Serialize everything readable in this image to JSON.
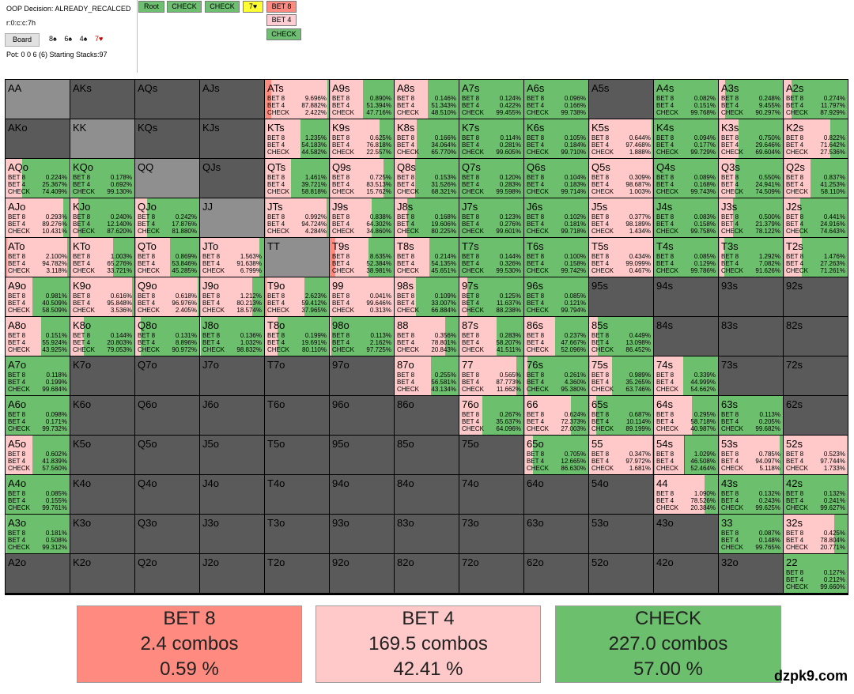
{
  "header": {
    "decision": "OOP Decision:  ALREADY_RECALCED",
    "line": "r:0:c:c:7h",
    "board_button": "Board",
    "board_cards": [
      {
        "text": "8♠",
        "color": "#000000"
      },
      {
        "text": "6♠",
        "color": "#000000"
      },
      {
        "text": "4♠",
        "color": "#000000"
      },
      {
        "text": "7♥",
        "color": "#cc0000"
      }
    ],
    "pot_stacks": "Pot: 0 0 6 (6) Starting Stacks:97"
  },
  "nav": [
    {
      "label": "Root",
      "color": "#6fbf73"
    },
    {
      "label": "CHECK",
      "color": "#6fbf73"
    },
    {
      "label": "CHECK",
      "color": "#6fbf73"
    },
    {
      "label": "7♥",
      "color": "#ffff33"
    },
    {
      "label": "BET 8",
      "color": "#ff8a80"
    },
    {
      "label": "BET 4",
      "color": "#ffcdd2"
    },
    {
      "label": "CHECK",
      "color": "#6fbf73"
    }
  ],
  "colors": {
    "bet8": "#ff8a80",
    "bet4": "#ffc9c9",
    "check": "#6cbf6c",
    "empty": "#5a5a5a",
    "pair_empty": "#8f8f8f"
  },
  "labels": {
    "bet8": "BET 8",
    "bet4": "BET 4",
    "check": "CHECK"
  },
  "hands": [
    [
      {
        "n": "AA"
      },
      {
        "n": "AKs"
      },
      {
        "n": "AQs"
      },
      {
        "n": "AJs"
      },
      {
        "n": "ATs",
        "v": [
          "9.696%",
          "87.882%",
          "2.422%"
        ]
      },
      {
        "n": "A9s",
        "v": [
          "0.890%",
          "51.394%",
          "47.716%"
        ]
      },
      {
        "n": "A8s",
        "v": [
          "0.146%",
          "51.343%",
          "48.510%"
        ]
      },
      {
        "n": "A7s",
        "v": [
          "0.124%",
          "0.422%",
          "99.455%"
        ]
      },
      {
        "n": "A6s",
        "v": [
          "0.096%",
          "0.166%",
          "99.738%"
        ]
      },
      {
        "n": "A5s"
      },
      {
        "n": "A4s",
        "v": [
          "0.082%",
          "0.151%",
          "99.768%"
        ]
      },
      {
        "n": "A3s",
        "v": [
          "0.248%",
          "9.455%",
          "90.297%"
        ]
      },
      {
        "n": "A2s",
        "v": [
          "0.274%",
          "11.797%",
          "87.929%"
        ]
      }
    ],
    [
      {
        "n": "AKo"
      },
      {
        "n": "KK"
      },
      {
        "n": "KQs"
      },
      {
        "n": "KJs"
      },
      {
        "n": "KTs",
        "v": [
          "1.235%",
          "54.183%",
          "44.582%"
        ]
      },
      {
        "n": "K9s",
        "v": [
          "0.625%",
          "76.818%",
          "22.557%"
        ]
      },
      {
        "n": "K8s",
        "v": [
          "0.166%",
          "34.064%",
          "65.770%"
        ]
      },
      {
        "n": "K7s",
        "v": [
          "0.114%",
          "0.281%",
          "99.605%"
        ]
      },
      {
        "n": "K6s",
        "v": [
          "0.105%",
          "0.184%",
          "99.710%"
        ]
      },
      {
        "n": "K5s",
        "v": [
          "0.644%",
          "97.468%",
          "1.888%"
        ]
      },
      {
        "n": "K4s",
        "v": [
          "0.094%",
          "0.177%",
          "99.729%"
        ]
      },
      {
        "n": "K3s",
        "v": [
          "0.750%",
          "29.646%",
          "69.604%"
        ]
      },
      {
        "n": "K2s",
        "v": [
          "0.822%",
          "71.642%",
          "27.536%"
        ]
      }
    ],
    [
      {
        "n": "AQo",
        "v": [
          "0.224%",
          "25.367%",
          "74.409%"
        ]
      },
      {
        "n": "KQo",
        "v": [
          "0.178%",
          "0.692%",
          "99.130%"
        ]
      },
      {
        "n": "QQ"
      },
      {
        "n": "QJs"
      },
      {
        "n": "QTs",
        "v": [
          "1.461%",
          "39.721%",
          "58.818%"
        ]
      },
      {
        "n": "Q9s",
        "v": [
          "0.725%",
          "83.513%",
          "15.762%"
        ]
      },
      {
        "n": "Q8s",
        "v": [
          "0.153%",
          "31.526%",
          "68.321%"
        ]
      },
      {
        "n": "Q7s",
        "v": [
          "0.120%",
          "0.283%",
          "99.598%"
        ]
      },
      {
        "n": "Q6s",
        "v": [
          "0.104%",
          "0.183%",
          "99.714%"
        ]
      },
      {
        "n": "Q5s",
        "v": [
          "0.309%",
          "98.687%",
          "1.003%"
        ]
      },
      {
        "n": "Q4s",
        "v": [
          "0.089%",
          "0.168%",
          "99.743%"
        ]
      },
      {
        "n": "Q3s",
        "v": [
          "0.550%",
          "24.941%",
          "74.509%"
        ]
      },
      {
        "n": "Q2s",
        "v": [
          "0.837%",
          "41.253%",
          "58.110%"
        ]
      }
    ],
    [
      {
        "n": "AJo",
        "v": [
          "0.293%",
          "89.276%",
          "10.431%"
        ]
      },
      {
        "n": "KJo",
        "v": [
          "0.240%",
          "12.140%",
          "87.620%"
        ]
      },
      {
        "n": "QJo",
        "v": [
          "0.242%",
          "17.876%",
          "81.880%"
        ]
      },
      {
        "n": "JJ"
      },
      {
        "n": "JTs",
        "v": [
          "0.992%",
          "94.724%",
          "4.284%"
        ]
      },
      {
        "n": "J9s",
        "v": [
          "0.838%",
          "64.302%",
          "34.860%"
        ]
      },
      {
        "n": "J8s",
        "v": [
          "0.168%",
          "19.606%",
          "80.225%"
        ]
      },
      {
        "n": "J7s",
        "v": [
          "0.123%",
          "0.276%",
          "99.601%"
        ]
      },
      {
        "n": "J6s",
        "v": [
          "0.102%",
          "0.181%",
          "99.718%"
        ]
      },
      {
        "n": "J5s",
        "v": [
          "0.377%",
          "98.189%",
          "1.434%"
        ]
      },
      {
        "n": "J4s",
        "v": [
          "0.083%",
          "0.158%",
          "99.758%"
        ]
      },
      {
        "n": "J3s",
        "v": [
          "0.500%",
          "21.379%",
          "78.122%"
        ]
      },
      {
        "n": "J2s",
        "v": [
          "0.441%",
          "24.916%",
          "74.643%"
        ]
      }
    ],
    [
      {
        "n": "ATo",
        "v": [
          "2.100%",
          "94.782%",
          "3.118%"
        ]
      },
      {
        "n": "KTo",
        "v": [
          "1.003%",
          "65.276%",
          "33.721%"
        ]
      },
      {
        "n": "QTo",
        "v": [
          "0.869%",
          "53.846%",
          "45.285%"
        ]
      },
      {
        "n": "JTo",
        "v": [
          "1.563%",
          "91.638%",
          "6.799%"
        ]
      },
      {
        "n": "TT"
      },
      {
        "n": "T9s",
        "v": [
          "8.635%",
          "52.384%",
          "38.981%"
        ]
      },
      {
        "n": "T8s",
        "v": [
          "0.214%",
          "54.135%",
          "45.651%"
        ]
      },
      {
        "n": "T7s",
        "v": [
          "0.144%",
          "0.326%",
          "99.530%"
        ]
      },
      {
        "n": "T6s",
        "v": [
          "0.100%",
          "0.158%",
          "99.742%"
        ]
      },
      {
        "n": "T5s",
        "v": [
          "0.434%",
          "99.099%",
          "0.467%"
        ]
      },
      {
        "n": "T4s",
        "v": [
          "0.085%",
          "0.129%",
          "99.786%"
        ]
      },
      {
        "n": "T3s",
        "v": [
          "1.292%",
          "7.082%",
          "91.626%"
        ]
      },
      {
        "n": "T2s",
        "v": [
          "1.476%",
          "27.263%",
          "71.261%"
        ]
      }
    ],
    [
      {
        "n": "A9o",
        "v": [
          "0.981%",
          "40.509%",
          "58.509%"
        ]
      },
      {
        "n": "K9o",
        "v": [
          "0.616%",
          "95.848%",
          "3.536%"
        ]
      },
      {
        "n": "Q9o",
        "v": [
          "0.618%",
          "96.976%",
          "2.405%"
        ]
      },
      {
        "n": "J9o",
        "v": [
          "1.212%",
          "80.213%",
          "18.574%"
        ]
      },
      {
        "n": "T9o",
        "v": [
          "2.623%",
          "59.412%",
          "37.965%"
        ]
      },
      {
        "n": "99",
        "v": [
          "0.041%",
          "99.646%",
          "0.313%"
        ]
      },
      {
        "n": "98s",
        "v": [
          "0.109%",
          "33.007%",
          "66.884%"
        ]
      },
      {
        "n": "97s",
        "v": [
          "0.125%",
          "11.637%",
          "88.238%"
        ]
      },
      {
        "n": "96s",
        "v": [
          "0.085%",
          "0.121%",
          "99.794%"
        ]
      },
      {
        "n": "95s"
      },
      {
        "n": "94s"
      },
      {
        "n": "93s"
      },
      {
        "n": "92s"
      }
    ],
    [
      {
        "n": "A8o",
        "v": [
          "0.151%",
          "55.924%",
          "43.925%"
        ]
      },
      {
        "n": "K8o",
        "v": [
          "0.144%",
          "20.803%",
          "79.053%"
        ]
      },
      {
        "n": "Q8o",
        "v": [
          "0.131%",
          "8.896%",
          "90.972%"
        ]
      },
      {
        "n": "J8o",
        "v": [
          "0.136%",
          "1.032%",
          "98.832%"
        ]
      },
      {
        "n": "T8o",
        "v": [
          "0.199%",
          "19.691%",
          "80.110%"
        ]
      },
      {
        "n": "98o",
        "v": [
          "0.113%",
          "2.162%",
          "97.725%"
        ]
      },
      {
        "n": "88",
        "v": [
          "0.356%",
          "78.801%",
          "20.843%"
        ]
      },
      {
        "n": "87s",
        "v": [
          "0.283%",
          "58.207%",
          "41.511%"
        ]
      },
      {
        "n": "86s",
        "v": [
          "0.237%",
          "47.667%",
          "52.096%"
        ]
      },
      {
        "n": "85s",
        "v": [
          "0.449%",
          "13.098%",
          "86.452%"
        ]
      },
      {
        "n": "84s"
      },
      {
        "n": "83s"
      },
      {
        "n": "82s"
      }
    ],
    [
      {
        "n": "A7o",
        "v": [
          "0.118%",
          "0.199%",
          "99.684%"
        ]
      },
      {
        "n": "K7o"
      },
      {
        "n": "Q7o"
      },
      {
        "n": "J7o"
      },
      {
        "n": "T7o"
      },
      {
        "n": "97o"
      },
      {
        "n": "87o",
        "v": [
          "0.255%",
          "56.581%",
          "43.134%"
        ]
      },
      {
        "n": "77",
        "v": [
          "0.565%",
          "87.773%",
          "11.662%"
        ]
      },
      {
        "n": "76s",
        "v": [
          "0.261%",
          "4.360%",
          "95.380%"
        ]
      },
      {
        "n": "75s",
        "v": [
          "0.989%",
          "35.265%",
          "63.746%"
        ]
      },
      {
        "n": "74s",
        "v": [
          "0.339%",
          "44.999%",
          "54.662%"
        ]
      },
      {
        "n": "73s"
      },
      {
        "n": "72s"
      }
    ],
    [
      {
        "n": "A6o",
        "v": [
          "0.098%",
          "0.171%",
          "99.732%"
        ]
      },
      {
        "n": "K6o"
      },
      {
        "n": "Q6o"
      },
      {
        "n": "J6o"
      },
      {
        "n": "T6o"
      },
      {
        "n": "96o"
      },
      {
        "n": "86o"
      },
      {
        "n": "76o",
        "v": [
          "0.267%",
          "35.637%",
          "64.096%"
        ]
      },
      {
        "n": "66",
        "v": [
          "0.624%",
          "72.373%",
          "27.003%"
        ]
      },
      {
        "n": "65s",
        "v": [
          "0.687%",
          "10.114%",
          "89.199%"
        ]
      },
      {
        "n": "64s",
        "v": [
          "0.295%",
          "58.718%",
          "40.987%"
        ]
      },
      {
        "n": "63s",
        "v": [
          "0.113%",
          "0.205%",
          "99.682%"
        ]
      },
      {
        "n": "62s"
      }
    ],
    [
      {
        "n": "A5o",
        "v": [
          "0.602%",
          "41.839%",
          "57.560%"
        ]
      },
      {
        "n": "K5o"
      },
      {
        "n": "Q5o"
      },
      {
        "n": "J5o"
      },
      {
        "n": "T5o"
      },
      {
        "n": "95o"
      },
      {
        "n": "85o"
      },
      {
        "n": "75o"
      },
      {
        "n": "65o",
        "v": [
          "0.705%",
          "12.665%",
          "86.630%"
        ]
      },
      {
        "n": "55",
        "v": [
          "0.347%",
          "97.972%",
          "1.681%"
        ]
      },
      {
        "n": "54s",
        "v": [
          "1.029%",
          "46.508%",
          "52.464%"
        ]
      },
      {
        "n": "53s",
        "v": [
          "0.785%",
          "94.097%",
          "5.118%"
        ]
      },
      {
        "n": "52s",
        "v": [
          "0.523%",
          "97.744%",
          "1.733%"
        ]
      }
    ],
    [
      {
        "n": "A4o",
        "v": [
          "0.085%",
          "0.155%",
          "99.761%"
        ]
      },
      {
        "n": "K4o"
      },
      {
        "n": "Q4o"
      },
      {
        "n": "J4o"
      },
      {
        "n": "T4o"
      },
      {
        "n": "94o"
      },
      {
        "n": "84o"
      },
      {
        "n": "74o"
      },
      {
        "n": "64o"
      },
      {
        "n": "54o"
      },
      {
        "n": "44",
        "v": [
          "1.090%",
          "78.526%",
          "20.384%"
        ]
      },
      {
        "n": "43s",
        "v": [
          "0.132%",
          "0.243%",
          "99.625%"
        ]
      },
      {
        "n": "42s",
        "v": [
          "0.132%",
          "0.241%",
          "99.627%"
        ]
      }
    ],
    [
      {
        "n": "A3o",
        "v": [
          "0.181%",
          "0.508%",
          "99.312%"
        ]
      },
      {
        "n": "K3o"
      },
      {
        "n": "Q3o"
      },
      {
        "n": "J3o"
      },
      {
        "n": "T3o"
      },
      {
        "n": "93o"
      },
      {
        "n": "83o"
      },
      {
        "n": "73o"
      },
      {
        "n": "63o"
      },
      {
        "n": "53o"
      },
      {
        "n": "43o"
      },
      {
        "n": "33",
        "v": [
          "0.087%",
          "0.148%",
          "99.765%"
        ]
      },
      {
        "n": "32s",
        "v": [
          "0.425%",
          "78.804%",
          "20.771%"
        ]
      }
    ],
    [
      {
        "n": "A2o"
      },
      {
        "n": "K2o"
      },
      {
        "n": "Q2o"
      },
      {
        "n": "J2o"
      },
      {
        "n": "T2o"
      },
      {
        "n": "92o"
      },
      {
        "n": "82o"
      },
      {
        "n": "72o"
      },
      {
        "n": "62o"
      },
      {
        "n": "52o"
      },
      {
        "n": "42o"
      },
      {
        "n": "32o"
      },
      {
        "n": "22",
        "v": [
          "0.127%",
          "0.212%",
          "99.660%"
        ]
      }
    ]
  ],
  "summary": [
    {
      "action": "BET 8",
      "combos": "2.4 combos",
      "pct": "0.59 %",
      "color": "#ff8a80"
    },
    {
      "action": "BET 4",
      "combos": "169.5 combos",
      "pct": "42.41 %",
      "color": "#ffc9c9"
    },
    {
      "action": "CHECK",
      "combos": "227.0 combos",
      "pct": "57.00 %",
      "color": "#6cbf6c"
    }
  ],
  "watermark": "dzpk9.com"
}
